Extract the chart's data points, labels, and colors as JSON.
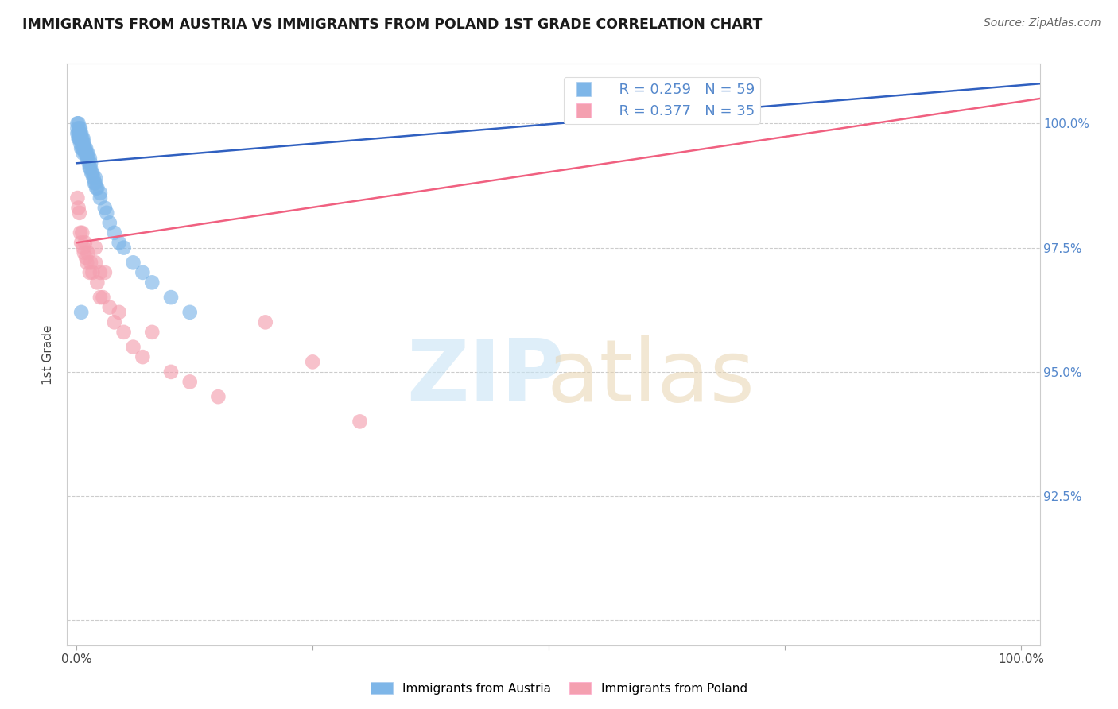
{
  "title": "IMMIGRANTS FROM AUSTRIA VS IMMIGRANTS FROM POLAND 1ST GRADE CORRELATION CHART",
  "source": "Source: ZipAtlas.com",
  "ylabel": "1st Grade",
  "xlim": [
    -1,
    102
  ],
  "ylim": [
    89.5,
    101.2
  ],
  "legend_austria": "Immigrants from Austria",
  "legend_poland": "Immigrants from Poland",
  "r_austria": "R = 0.259",
  "n_austria": "N = 59",
  "r_poland": "R = 0.377",
  "n_poland": "N = 35",
  "austria_color": "#7EB6E8",
  "poland_color": "#F4A0B0",
  "austria_line_color": "#3060C0",
  "poland_line_color": "#F06080",
  "austria_scatter_x": [
    0.1,
    0.1,
    0.1,
    0.2,
    0.2,
    0.2,
    0.3,
    0.3,
    0.3,
    0.4,
    0.4,
    0.4,
    0.5,
    0.5,
    0.5,
    0.6,
    0.6,
    0.6,
    0.7,
    0.7,
    0.7,
    0.8,
    0.8,
    0.9,
    0.9,
    1.0,
    1.0,
    1.1,
    1.1,
    1.2,
    1.2,
    1.3,
    1.4,
    1.4,
    1.5,
    1.5,
    1.6,
    1.7,
    1.8,
    1.9,
    2.0,
    2.0,
    2.1,
    2.2,
    2.5,
    2.5,
    3.0,
    3.2,
    3.5,
    4.0,
    4.5,
    5.0,
    6.0,
    7.0,
    8.0,
    10.0,
    12.0,
    0.3,
    0.5
  ],
  "austria_scatter_y": [
    100.0,
    99.8,
    99.9,
    100.0,
    99.7,
    99.8,
    99.9,
    99.7,
    99.8,
    99.6,
    99.8,
    99.9,
    99.5,
    99.7,
    99.8,
    99.5,
    99.6,
    99.7,
    99.4,
    99.6,
    99.7,
    99.5,
    99.6,
    99.4,
    99.5,
    99.4,
    99.5,
    99.3,
    99.4,
    99.3,
    99.4,
    99.2,
    99.1,
    99.3,
    99.1,
    99.2,
    99.0,
    99.0,
    98.9,
    98.8,
    98.8,
    98.9,
    98.7,
    98.7,
    98.5,
    98.6,
    98.3,
    98.2,
    98.0,
    97.8,
    97.6,
    97.5,
    97.2,
    97.0,
    96.8,
    96.5,
    96.2,
    99.7,
    96.2
  ],
  "poland_scatter_x": [
    0.1,
    0.2,
    0.3,
    0.4,
    0.5,
    0.6,
    0.7,
    0.8,
    0.9,
    1.0,
    1.1,
    1.2,
    1.4,
    1.5,
    1.7,
    2.0,
    2.2,
    2.5,
    2.8,
    3.0,
    3.5,
    4.0,
    4.5,
    5.0,
    6.0,
    7.0,
    8.0,
    10.0,
    12.0,
    15.0,
    20.0,
    25.0,
    30.0,
    2.0,
    2.5
  ],
  "poland_scatter_y": [
    98.5,
    98.3,
    98.2,
    97.8,
    97.6,
    97.8,
    97.5,
    97.4,
    97.6,
    97.3,
    97.2,
    97.4,
    97.0,
    97.2,
    97.0,
    97.2,
    96.8,
    96.5,
    96.5,
    97.0,
    96.3,
    96.0,
    96.2,
    95.8,
    95.5,
    95.3,
    95.8,
    95.0,
    94.8,
    94.5,
    96.0,
    95.2,
    94.0,
    97.5,
    97.0
  ],
  "austria_line_x0": 0,
  "austria_line_y0": 99.2,
  "austria_line_x1": 102,
  "austria_line_y1": 100.8,
  "poland_line_x0": 0,
  "poland_line_y0": 97.6,
  "poland_line_x1": 102,
  "poland_line_y1": 100.5,
  "y_gridlines": [
    90.0,
    92.5,
    95.0,
    97.5,
    100.0
  ],
  "y_tick_labels_right": [
    "",
    "92.5%",
    "95.0%",
    "97.5%",
    "100.0%"
  ],
  "background_color": "#FFFFFF",
  "grid_color": "#CCCCCC",
  "tick_color": "#5588CC"
}
